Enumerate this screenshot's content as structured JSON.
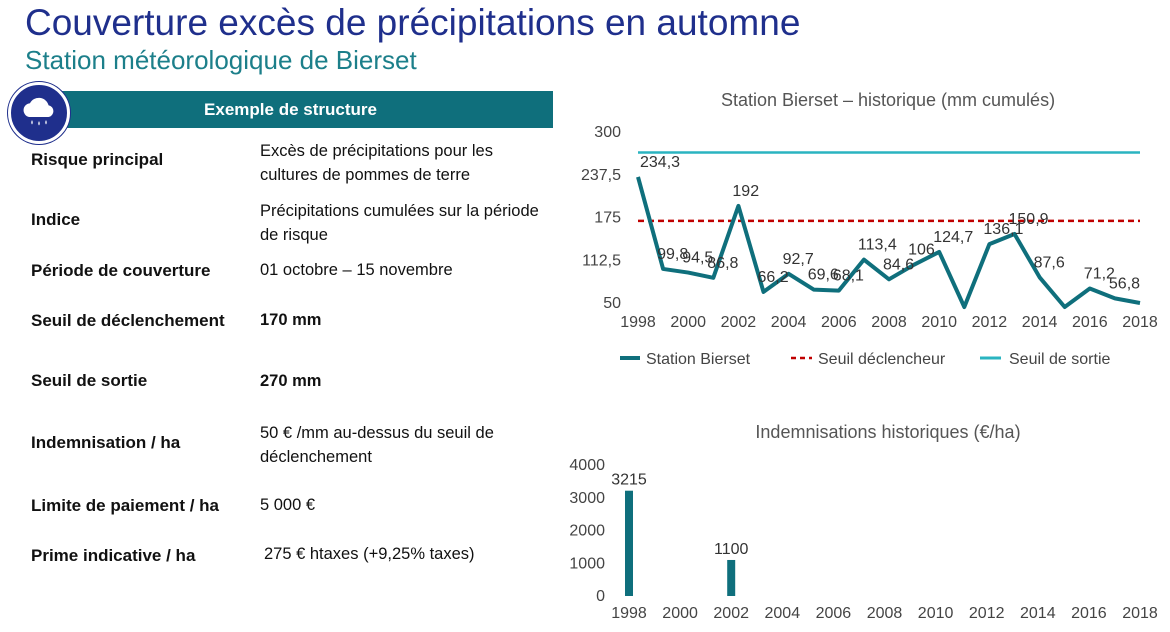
{
  "header": {
    "title": "Couverture excès de précipitations en automne",
    "subtitle": "Station météorologique de Bierset"
  },
  "icon": {
    "name": "rain-cloud-icon",
    "color": "#1f2f8c"
  },
  "table": {
    "header": "Exemple de structure",
    "rows": [
      {
        "label": "Risque principal",
        "value": "Excès de précipitations pour les cultures de pommes de terre"
      },
      {
        "label": "Indice",
        "value": "Précipitations cumulées sur la période de risque"
      },
      {
        "label": "Période de couverture",
        "value": "01 octobre – 15 novembre"
      },
      {
        "label": "Seuil de déclenchement",
        "value": "170 mm"
      },
      {
        "label": "Seuil de sortie",
        "value": "270 mm"
      },
      {
        "label": "Indemnisation / ha",
        "value": "50 € /mm au-dessus du seuil de déclenchement"
      },
      {
        "label": "Limite de paiement / ha",
        "value": "5 000 €"
      },
      {
        "label": "Prime indicative / ha",
        "value": "275 € htaxes (+9,25% taxes)"
      }
    ]
  },
  "colors": {
    "brand_blue": "#1f2f8c",
    "teal": "#0f6f7c",
    "series_station": "#0f6f7c",
    "threshold_trigger": "#c00000",
    "threshold_exit": "#2ab4c0"
  },
  "chart_data": [
    {
      "type": "line",
      "title": "Station Bierset – historique (mm cumulés)",
      "x": [
        1998,
        1999,
        2000,
        2001,
        2002,
        2003,
        2004,
        2005,
        2006,
        2007,
        2008,
        2009,
        2010,
        2011,
        2012,
        2013,
        2014,
        2015,
        2016,
        2017,
        2018
      ],
      "x_ticks": [
        "1998",
        "2000",
        "2002",
        "2004",
        "2006",
        "2008",
        "2010",
        "2012",
        "2014",
        "2016",
        "2018"
      ],
      "y_ticks": [
        "300",
        "237,5",
        "175",
        "112,5",
        "50"
      ],
      "ylim": [
        50,
        300
      ],
      "series": [
        {
          "name": "Station Bierset",
          "values": [
            234.3,
            99.8,
            94.5,
            86.8,
            192,
            66.2,
            92.7,
            69.6,
            68.1,
            113.4,
            84.6,
            106,
            124.7,
            25,
            136.1,
            150.9,
            87.6,
            35,
            71.2,
            56.8,
            50
          ],
          "labels": [
            "234,3",
            "99,8",
            "94,5",
            "86,8",
            "192",
            "66,2",
            "92,7",
            "69,6",
            "68,1",
            "113,4",
            "84,6",
            "106",
            "124,7",
            "",
            "136,1",
            "150,9",
            "87,6",
            "",
            "71,2",
            "56,8",
            ""
          ]
        },
        {
          "name": "Seuil déclencheur",
          "value": 170
        },
        {
          "name": "Seuil de sortie",
          "value": 270
        }
      ],
      "legend": "bottom"
    },
    {
      "type": "bar",
      "title": "Indemnisations historiques (€/ha)",
      "x": [
        1998,
        1999,
        2000,
        2001,
        2002,
        2003,
        2004,
        2005,
        2006,
        2007,
        2008,
        2009,
        2010,
        2011,
        2012,
        2013,
        2014,
        2015,
        2016,
        2017,
        2018
      ],
      "x_ticks": [
        "1998",
        "2000",
        "2002",
        "2004",
        "2006",
        "2008",
        "2010",
        "2012",
        "2014",
        "2016",
        "2018"
      ],
      "y_ticks": [
        "4000",
        "3000",
        "2000",
        "1000",
        "0"
      ],
      "ylim": [
        0,
        4000
      ],
      "values": [
        3215,
        0,
        0,
        0,
        1100,
        0,
        0,
        0,
        0,
        0,
        0,
        0,
        0,
        0,
        0,
        0,
        0,
        0,
        0,
        0,
        0
      ],
      "labels": [
        "3215",
        "",
        "",
        "",
        "1100",
        "",
        "",
        "",
        "",
        "",
        "",
        "",
        "",
        "",
        "",
        "",
        "",
        "",
        "",
        "",
        ""
      ]
    }
  ]
}
